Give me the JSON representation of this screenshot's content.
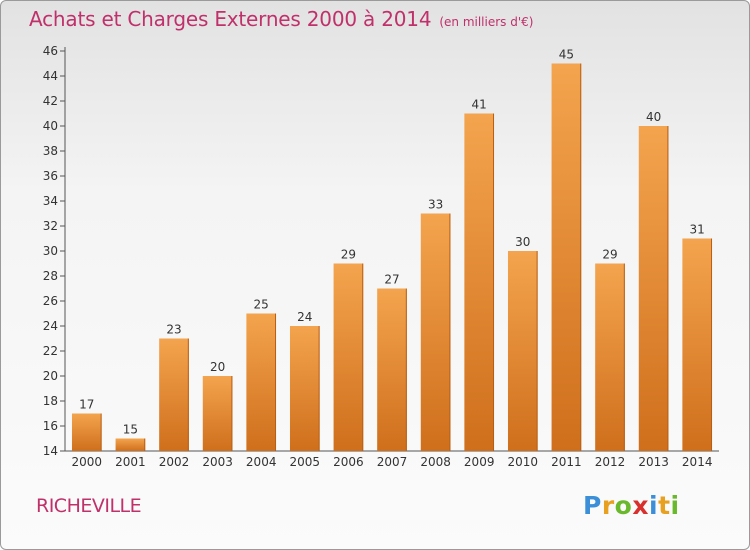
{
  "title": "Achats et Charges Externes 2000 à 2014",
  "subtitle": "(en milliers d'€)",
  "location": "RICHEVILLE",
  "brand": {
    "letters": [
      "P",
      "r",
      "o",
      "x",
      "i",
      "t",
      "i"
    ],
    "colors": [
      "#3a8fd8",
      "#e8a020",
      "#6ab82c",
      "#d8302c",
      "#3a8fd8",
      "#e8a020",
      "#6ab82c"
    ]
  },
  "colors": {
    "bar_top": "#f4a44e",
    "bar_bottom": "#cf6f1c",
    "title": "#c0306a"
  },
  "chart_data": {
    "type": "bar",
    "title": "Achats et Charges Externes 2000 à 2014",
    "ylabel": "en milliers d'€",
    "xlabel": "",
    "categories": [
      "2000",
      "2001",
      "2002",
      "2003",
      "2004",
      "2005",
      "2006",
      "2007",
      "2008",
      "2009",
      "2010",
      "2011",
      "2012",
      "2013",
      "2014"
    ],
    "values": [
      17,
      15,
      23,
      20,
      25,
      24,
      29,
      27,
      33,
      41,
      30,
      45,
      29,
      40,
      31
    ],
    "ylim": [
      14,
      46
    ],
    "yticks": [
      14,
      16,
      18,
      20,
      22,
      24,
      26,
      28,
      30,
      32,
      34,
      36,
      38,
      40,
      42,
      44,
      46
    ],
    "grid": false
  }
}
